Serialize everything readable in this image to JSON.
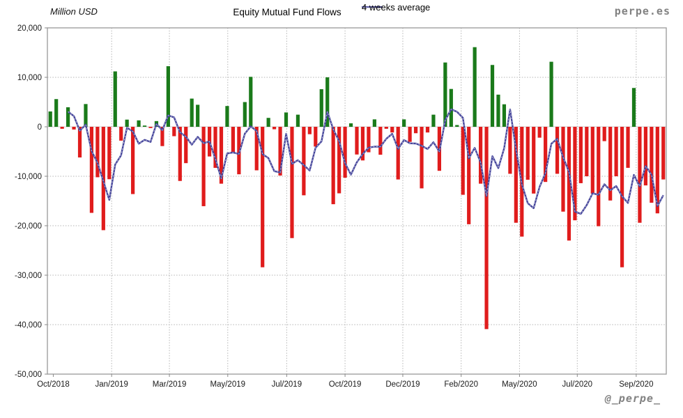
{
  "header": {
    "unit_label": "Million USD",
    "title": "Equity Mutual Fund Flows",
    "legend_label": "4 weeks average",
    "brand": "perpe.es"
  },
  "footer": {
    "handle": "@_perpe_"
  },
  "chart_data": {
    "type": "bar",
    "title": "Equity Mutual Fund Flows",
    "ylabel": "Million USD",
    "ylim": [
      -50000,
      20000
    ],
    "grid": true,
    "legend_position": "top",
    "y_ticks": [
      {
        "value": 20000,
        "label": "20,000"
      },
      {
        "value": 10000,
        "label": "10,000"
      },
      {
        "value": 0,
        "label": "0"
      },
      {
        "value": -10000,
        "label": "-10,000"
      },
      {
        "value": -20000,
        "label": "-20,000"
      },
      {
        "value": -30000,
        "label": "-30,000"
      },
      {
        "value": -40000,
        "label": "-40,000"
      },
      {
        "value": -50000,
        "label": "-50,000"
      }
    ],
    "x_ticks": [
      {
        "label": "Oct/2018",
        "week": 1.5,
        "gridline": false
      },
      {
        "label": "Jan/2019",
        "week": 11.4,
        "gridline": true
      },
      {
        "label": "Mar/2019",
        "week": 21.2,
        "gridline": true
      },
      {
        "label": "May/2019",
        "week": 31.1,
        "gridline": true
      },
      {
        "label": "Jul/2019",
        "week": 41.1,
        "gridline": true
      },
      {
        "label": "Oct/2019",
        "week": 51.0,
        "gridline": true
      },
      {
        "label": "Dec/2019",
        "week": 60.8,
        "gridline": true
      },
      {
        "label": "Feb/2020",
        "week": 70.7,
        "gridline": true
      },
      {
        "label": "May/2020",
        "week": 80.6,
        "gridline": true
      },
      {
        "label": "Jul/2020",
        "week": 90.4,
        "gridline": true
      },
      {
        "label": "Sep/2020",
        "week": 100.4,
        "gridline": true
      }
    ],
    "series": [
      {
        "name": "Weekly equity mutual fund flows (Million USD)",
        "type": "bar",
        "values": [
          3100,
          5600,
          -400,
          3950,
          -550,
          -6200,
          4600,
          -17400,
          -10200,
          -20900,
          -10600,
          11200,
          -2800,
          1450,
          -13600,
          1300,
          250,
          -250,
          1150,
          -3900,
          12250,
          -1900,
          -10950,
          -7350,
          5700,
          4450,
          -16050,
          -6000,
          -8300,
          -11500,
          4200,
          -5150,
          -9600,
          5000,
          10100,
          -8800,
          -28400,
          1800,
          -500,
          -9850,
          2900,
          -22500,
          2450,
          -13850,
          -1500,
          -4000,
          7600,
          10000,
          -15650,
          -13450,
          -10300,
          700,
          -5600,
          -6800,
          -5150,
          1500,
          -5650,
          -400,
          -1150,
          -10650,
          1500,
          -3050,
          -1300,
          -12450,
          -1150,
          2450,
          -8900,
          13000,
          7650,
          350,
          -13750,
          -19700,
          16100,
          -11500,
          -40900,
          12500,
          6500,
          4550,
          -9500,
          -19400,
          -22200,
          -10700,
          -13500,
          -2200,
          -11150,
          13150,
          -9500,
          -17150,
          -23000,
          -18900,
          -11400,
          -10000,
          -13500,
          -20100,
          -2900,
          -14900,
          -10000,
          -28400,
          -8300,
          7850,
          -19400,
          -11850,
          -15350,
          -17500,
          -10650
        ]
      },
      {
        "name": "4 weeks average",
        "type": "line",
        "derived_from": "trailing 4-week mean of weekly flows, starting at week 4"
      }
    ],
    "colors": {
      "positive_bar": "#1a7a1a",
      "negative_bar": "#e01c1c",
      "average_line": "#43439a",
      "gridline": "#b3b3b3",
      "frame": "#a0a0a0",
      "zero_line": "#cccccc"
    }
  }
}
